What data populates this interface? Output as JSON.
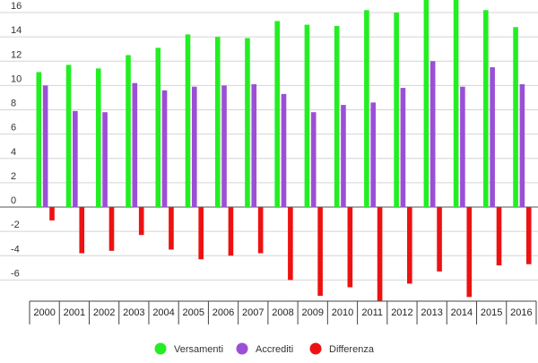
{
  "chart_data": {
    "type": "bar",
    "categories": [
      "2000",
      "2001",
      "2002",
      "2003",
      "2004",
      "2005",
      "2006",
      "2007",
      "2008",
      "2009",
      "2010",
      "2011",
      "2012",
      "2013",
      "2014",
      "2015",
      "2016"
    ],
    "series": [
      {
        "name": "Versamenti",
        "color": "#22ee22",
        "values": [
          11.1,
          11.7,
          11.4,
          12.5,
          13.1,
          14.2,
          14.0,
          13.9,
          15.3,
          15.0,
          14.9,
          16.2,
          16.0,
          17.2,
          17.2,
          16.2,
          14.8
        ]
      },
      {
        "name": "Accrediti",
        "color": "#9b4fd6",
        "values": [
          10.0,
          7.9,
          7.8,
          10.2,
          9.6,
          9.9,
          10.0,
          10.1,
          9.3,
          7.8,
          8.4,
          8.6,
          9.8,
          12.0,
          9.9,
          11.5,
          10.1
        ]
      },
      {
        "name": "Differenza",
        "color": "#ee1111",
        "values": [
          -1.1,
          -3.8,
          -3.6,
          -2.3,
          -3.5,
          -4.3,
          -4.0,
          -3.8,
          -6.0,
          -7.3,
          -6.6,
          -7.7,
          -6.3,
          -5.3,
          -7.4,
          -4.8,
          -4.7
        ]
      }
    ],
    "y_ticks": [
      16,
      14,
      12,
      10,
      8,
      6,
      4,
      2,
      0,
      -2,
      -4,
      -6
    ],
    "ylim": [
      -8,
      17.3
    ],
    "grid": true,
    "legend_position": "bottom",
    "title": "",
    "xlabel": "",
    "ylabel": ""
  }
}
